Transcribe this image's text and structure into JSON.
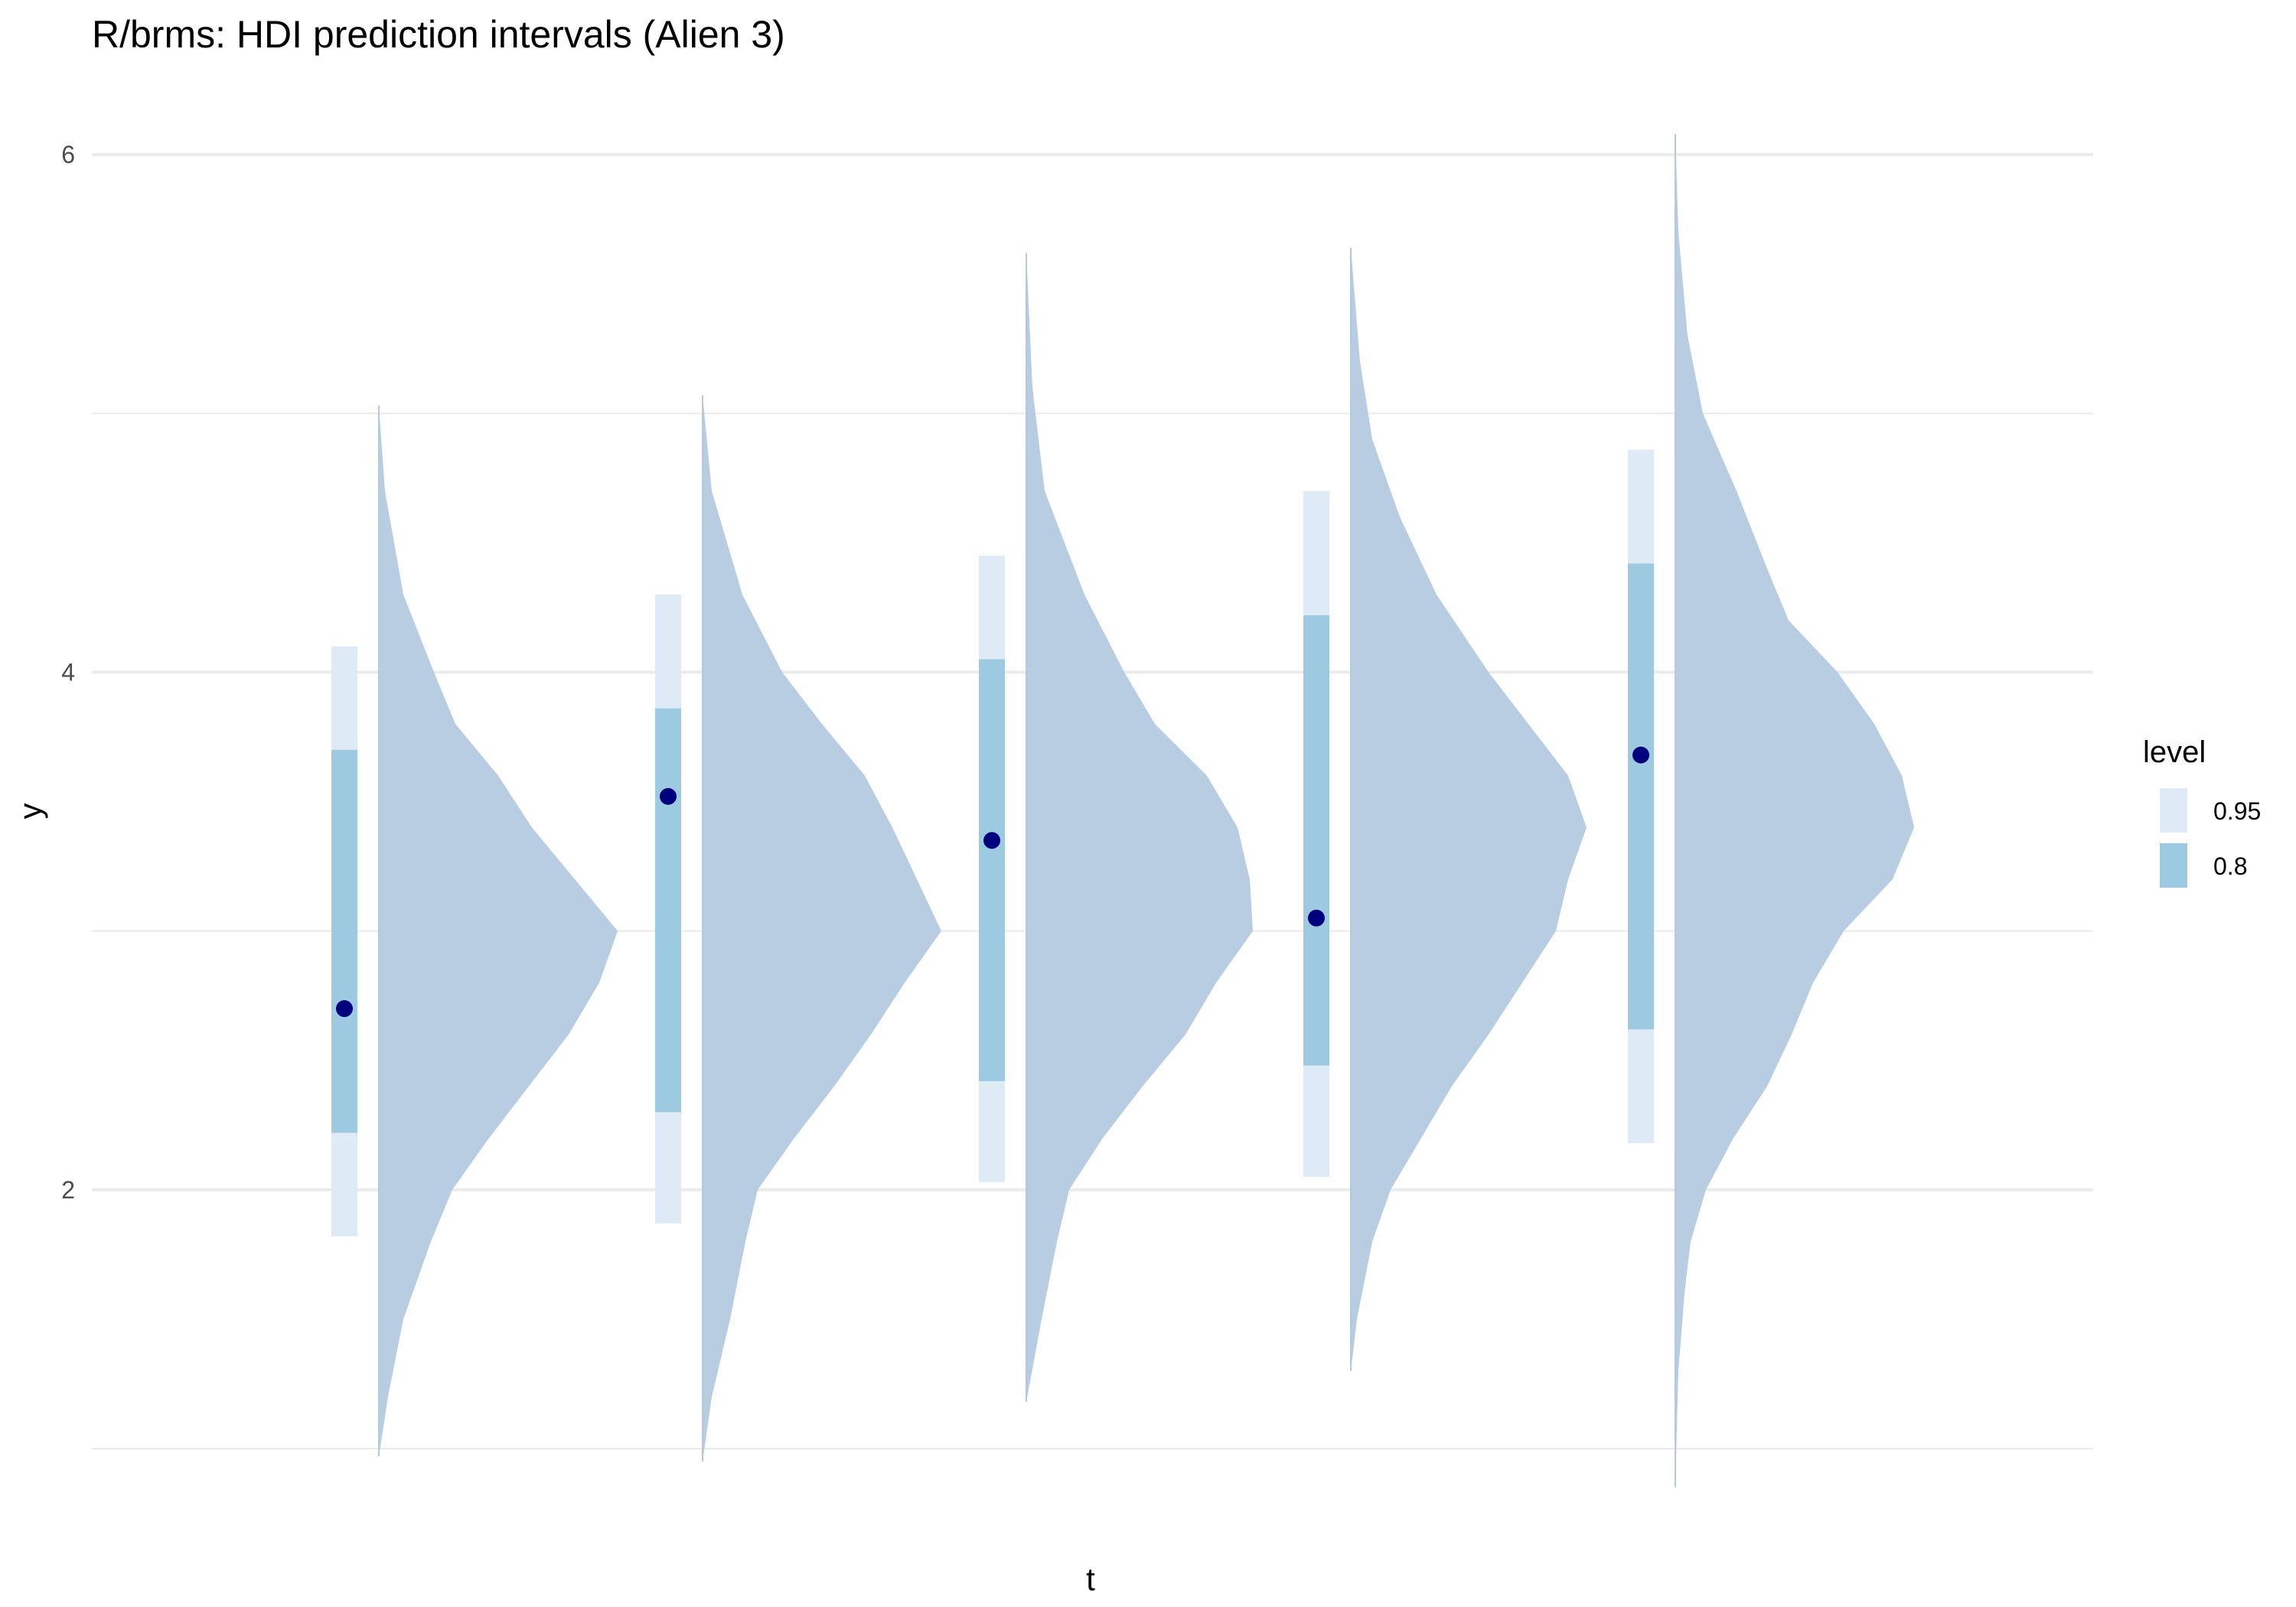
{
  "chart_data": {
    "type": "halfeye",
    "title": "R/brms: HDI prediction intervals (Alien 3)",
    "xlabel": "t",
    "ylabel": "y",
    "y_ticks": [
      2,
      4,
      6
    ],
    "ylim": [
      1.0,
      6.0
    ],
    "grid": true,
    "legend": {
      "title": "level",
      "position": "right",
      "entries": [
        {
          "label": "0.95",
          "color": "#deebf7"
        },
        {
          "label": "0.8",
          "color": "#9ecae1"
        }
      ]
    },
    "colors": {
      "density": "#b4c9e0",
      "point": "#00007f",
      "grid": "#ebebeb"
    },
    "series": [
      {
        "point": 2.7,
        "hdi_95": [
          1.82,
          4.1
        ],
        "hdi_80": [
          2.22,
          3.7
        ],
        "density_range": [
          0.97,
          5.03
        ],
        "density": [
          [
            0.97,
            0.0
          ],
          [
            1.2,
            0.03
          ],
          [
            1.5,
            0.08
          ],
          [
            1.8,
            0.17
          ],
          [
            2.0,
            0.24
          ],
          [
            2.2,
            0.36
          ],
          [
            2.4,
            0.49
          ],
          [
            2.6,
            0.62
          ],
          [
            2.8,
            0.72
          ],
          [
            3.0,
            0.78
          ],
          [
            3.2,
            0.64
          ],
          [
            3.4,
            0.5
          ],
          [
            3.6,
            0.39
          ],
          [
            3.8,
            0.25
          ],
          [
            4.0,
            0.18
          ],
          [
            4.3,
            0.08
          ],
          [
            4.7,
            0.02
          ],
          [
            5.03,
            0.0
          ]
        ]
      },
      {
        "point": 3.52,
        "hdi_95": [
          1.87,
          4.3
        ],
        "hdi_80": [
          2.3,
          3.86
        ],
        "density_range": [
          0.95,
          5.07
        ],
        "density": [
          [
            0.95,
            0.0
          ],
          [
            1.2,
            0.03
          ],
          [
            1.5,
            0.09
          ],
          [
            1.8,
            0.14
          ],
          [
            2.0,
            0.18
          ],
          [
            2.2,
            0.3
          ],
          [
            2.4,
            0.43
          ],
          [
            2.6,
            0.55
          ],
          [
            2.8,
            0.66
          ],
          [
            3.0,
            0.78
          ],
          [
            3.2,
            0.7
          ],
          [
            3.4,
            0.62
          ],
          [
            3.6,
            0.53
          ],
          [
            3.8,
            0.39
          ],
          [
            4.0,
            0.26
          ],
          [
            4.3,
            0.13
          ],
          [
            4.7,
            0.03
          ],
          [
            5.07,
            0.0
          ]
        ]
      },
      {
        "point": 3.35,
        "hdi_95": [
          2.03,
          4.45
        ],
        "hdi_80": [
          2.42,
          4.05
        ],
        "density_range": [
          1.18,
          5.62
        ],
        "density": [
          [
            1.18,
            0.0
          ],
          [
            1.5,
            0.05
          ],
          [
            1.8,
            0.1
          ],
          [
            2.0,
            0.14
          ],
          [
            2.2,
            0.25
          ],
          [
            2.4,
            0.38
          ],
          [
            2.6,
            0.52
          ],
          [
            2.8,
            0.62
          ],
          [
            3.0,
            0.74
          ],
          [
            3.2,
            0.73
          ],
          [
            3.4,
            0.69
          ],
          [
            3.6,
            0.59
          ],
          [
            3.8,
            0.42
          ],
          [
            4.0,
            0.32
          ],
          [
            4.3,
            0.19
          ],
          [
            4.7,
            0.06
          ],
          [
            5.1,
            0.02
          ],
          [
            5.62,
            0.0
          ]
        ]
      },
      {
        "point": 3.05,
        "hdi_95": [
          2.05,
          4.7
        ],
        "hdi_80": [
          2.48,
          4.22
        ],
        "density_range": [
          1.3,
          5.64
        ],
        "density": [
          [
            1.3,
            0.0
          ],
          [
            1.5,
            0.02
          ],
          [
            1.8,
            0.07
          ],
          [
            2.0,
            0.13
          ],
          [
            2.2,
            0.23
          ],
          [
            2.4,
            0.33
          ],
          [
            2.6,
            0.45
          ],
          [
            2.8,
            0.56
          ],
          [
            3.0,
            0.67
          ],
          [
            3.2,
            0.71
          ],
          [
            3.4,
            0.77
          ],
          [
            3.6,
            0.71
          ],
          [
            3.8,
            0.58
          ],
          [
            4.0,
            0.45
          ],
          [
            4.3,
            0.28
          ],
          [
            4.6,
            0.16
          ],
          [
            4.9,
            0.07
          ],
          [
            5.2,
            0.03
          ],
          [
            5.64,
            0.0
          ]
        ]
      },
      {
        "point": 3.68,
        "hdi_95": [
          2.18,
          4.86
        ],
        "hdi_80": [
          2.62,
          4.42
        ],
        "density_range": [
          0.85,
          6.08
        ],
        "density": [
          [
            0.85,
            0.0
          ],
          [
            1.3,
            0.01
          ],
          [
            1.6,
            0.03
          ],
          [
            1.8,
            0.05
          ],
          [
            2.0,
            0.1
          ],
          [
            2.2,
            0.19
          ],
          [
            2.4,
            0.3
          ],
          [
            2.6,
            0.38
          ],
          [
            2.8,
            0.45
          ],
          [
            3.0,
            0.55
          ],
          [
            3.2,
            0.71
          ],
          [
            3.4,
            0.78
          ],
          [
            3.6,
            0.74
          ],
          [
            3.8,
            0.65
          ],
          [
            4.0,
            0.53
          ],
          [
            4.2,
            0.37
          ],
          [
            4.4,
            0.3
          ],
          [
            4.7,
            0.2
          ],
          [
            5.0,
            0.09
          ],
          [
            5.3,
            0.04
          ],
          [
            5.7,
            0.01
          ],
          [
            6.08,
            0.0
          ]
        ]
      }
    ]
  }
}
